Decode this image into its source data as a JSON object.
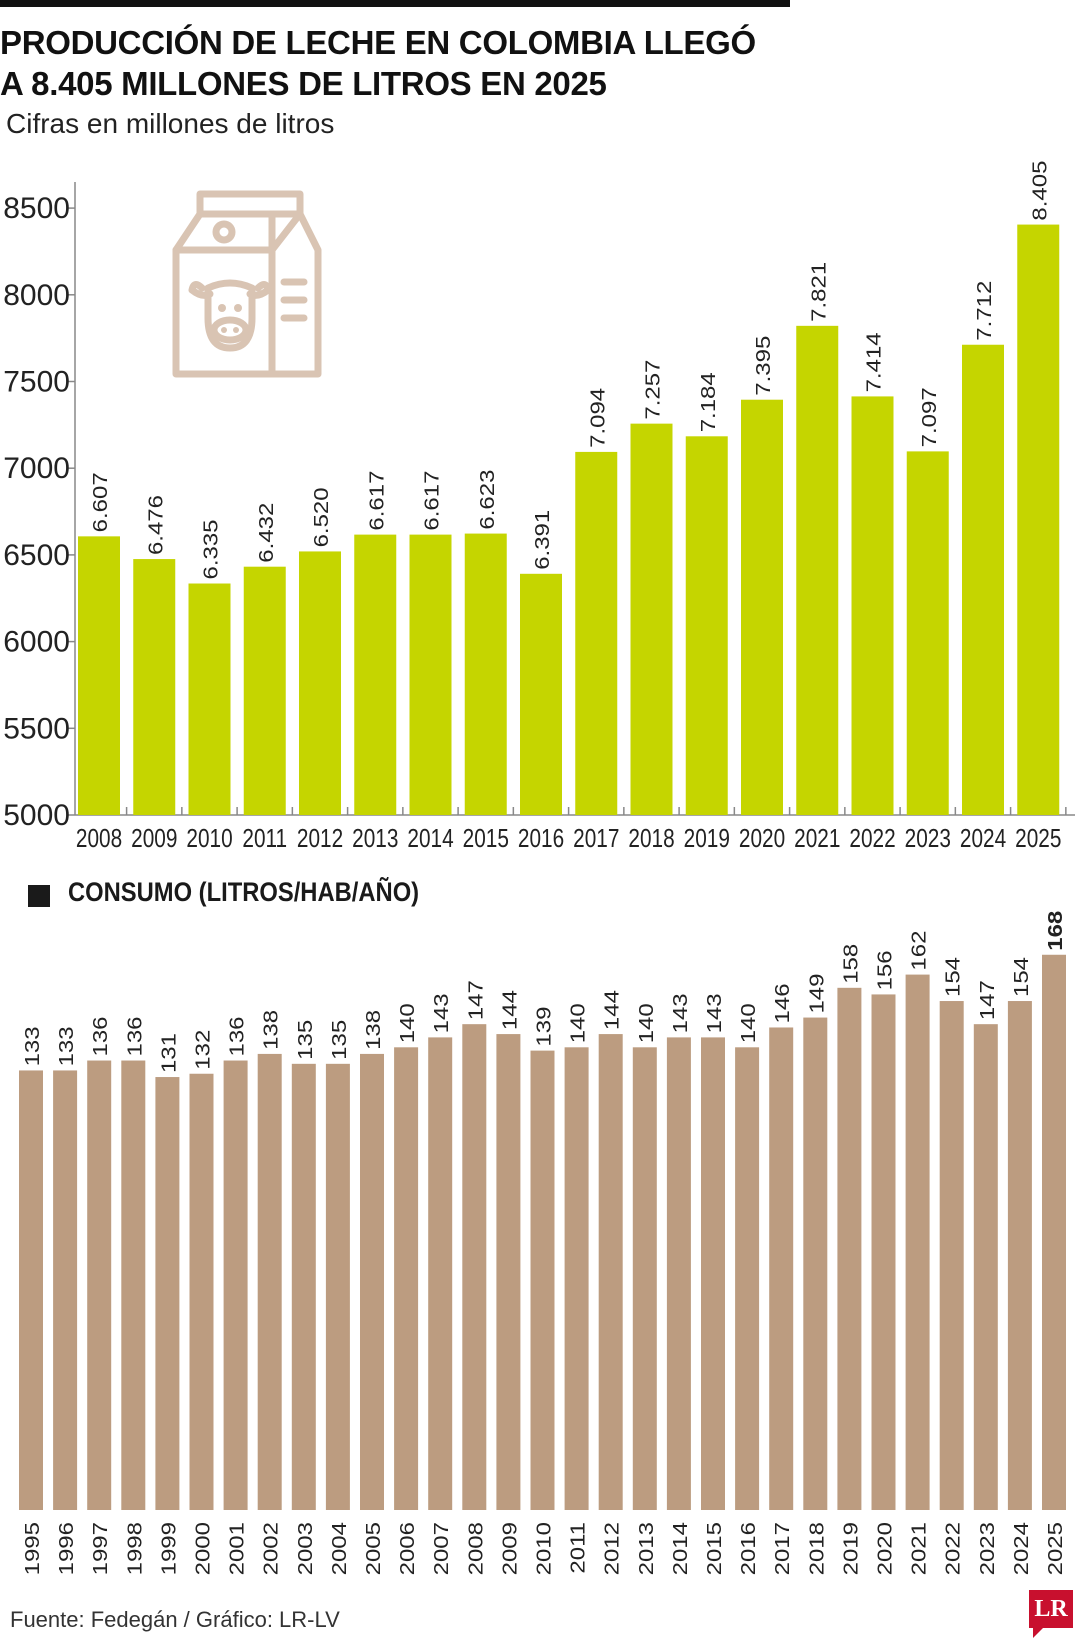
{
  "header": {
    "title": "PRODUCCIÓN DE LECHE EN COLOMBIA LLEGÓ\nA 8.405 MILLONES DE LITROS EN 2025",
    "subtitle": "Cifras en millones de litros"
  },
  "colors": {
    "production_bar": "#c5d500",
    "consumption_bar": "#bc9c80",
    "icon": "#d9c4b3"
  },
  "icons": {
    "milk_carton": "milk-carton-cow-icon",
    "legend": "legend-square-icon"
  },
  "chart_data": [
    {
      "type": "bar",
      "categories": [
        "2008",
        "2009",
        "2010",
        "2011",
        "2012",
        "2013",
        "2014",
        "2015",
        "2016",
        "2017",
        "2018",
        "2019",
        "2020",
        "2021",
        "2022",
        "2023",
        "2024",
        "2025"
      ],
      "values": [
        6607,
        6476,
        6335,
        6432,
        6520,
        6617,
        6617,
        6623,
        6391,
        7094,
        7257,
        7184,
        7395,
        7821,
        7414,
        7097,
        7712,
        8405
      ],
      "data_labels": [
        "6.607",
        "6.476",
        "6.335",
        "6.432",
        "6.520",
        "6.617",
        "6.617",
        "6.623",
        "6.391",
        "7.094",
        "7.257",
        "7.184",
        "7.395",
        "7.821",
        "7.414",
        "7.097",
        "7.712",
        "8.405"
      ],
      "y_ticks": [
        "5000",
        "5500",
        "6000",
        "6500",
        "7000",
        "7500",
        "8000",
        "8500"
      ],
      "ylim": [
        5000,
        8600
      ],
      "grid": false
    },
    {
      "type": "bar",
      "legend": "CONSUMO (LITROS/HAB/AÑO)",
      "legend_position": "top-left",
      "categories": [
        "1995",
        "1996",
        "1997",
        "1998",
        "1999",
        "2000",
        "2001",
        "2002",
        "2003",
        "2004",
        "2005",
        "2006",
        "2007",
        "2008",
        "2009",
        "2010",
        "2011",
        "2012",
        "2013",
        "2014",
        "2015",
        "2016",
        "2017",
        "2018",
        "2019",
        "2020",
        "2021",
        "2022",
        "2023",
        "2024",
        "2025"
      ],
      "values": [
        133,
        133,
        136,
        136,
        131,
        132,
        136,
        138,
        135,
        135,
        138,
        140,
        143,
        147,
        144,
        139,
        140,
        144,
        140,
        143,
        143,
        140,
        146,
        149,
        158,
        156,
        162,
        154,
        147,
        154,
        168
      ],
      "ylim": [
        0,
        172
      ],
      "grid": false
    }
  ],
  "footer": {
    "source": "Fuente: Fedegán / Gráfico: LR-LV",
    "logo": "LR"
  }
}
